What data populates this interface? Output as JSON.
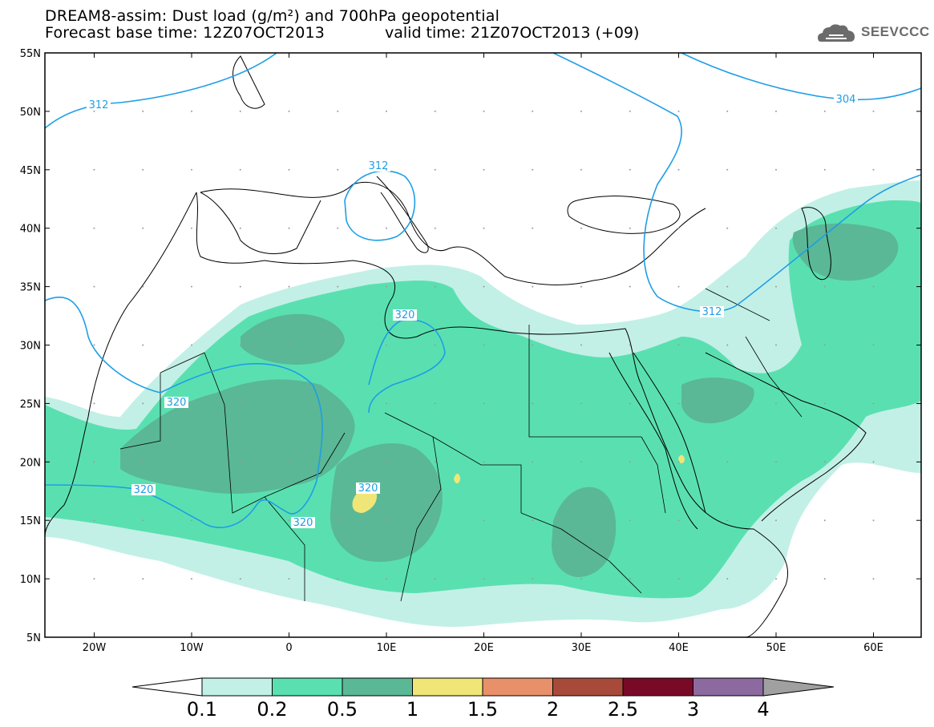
{
  "header": {
    "title_line1": "DREAM8-assim: Dust load (g/m²) and 700hPa geopotential",
    "title_line2": "Forecast base time: 12Z07OCT2013",
    "valid_time": "valid time: 21Z07OCT2013 (+09)",
    "logo_text": "SEEVCCC"
  },
  "map": {
    "lat_labels": [
      "55N",
      "50N",
      "45N",
      "40N",
      "35N",
      "30N",
      "25N",
      "20N",
      "15N",
      "10N",
      "5N"
    ],
    "lon_labels": [
      "20W",
      "10W",
      "0",
      "10E",
      "20E",
      "30E",
      "40E",
      "50E",
      "60E"
    ],
    "contour_labels": [
      "312",
      "312",
      "304",
      "312",
      "320",
      "320",
      "320",
      "320",
      "320"
    ],
    "colors": {
      "frame": "#000000",
      "geopotential": "#1e9ee6",
      "dust_0_1": "#c2f0e6",
      "dust_0_2": "#5ae0b0",
      "dust_0_5": "#5ab896",
      "dust_1": "#f0e678",
      "dust_1_5": "#e8906a",
      "dust_2": "#a84a3a",
      "dust_2_5": "#780a28",
      "dust_3": "#8c6aa0",
      "dust_4": "#a0a0a0"
    }
  },
  "colorbar": {
    "labels": [
      "0.1",
      "0.2",
      "0.5",
      "1",
      "1.5",
      "2",
      "2.5",
      "3",
      "4"
    ],
    "colors": [
      "#c2f0e6",
      "#5ae0b0",
      "#5ab896",
      "#f0e678",
      "#e8906a",
      "#a84a3a",
      "#780a28",
      "#8c6aa0"
    ],
    "under_color": "#ffffff",
    "over_color": "#a0a0a0"
  }
}
